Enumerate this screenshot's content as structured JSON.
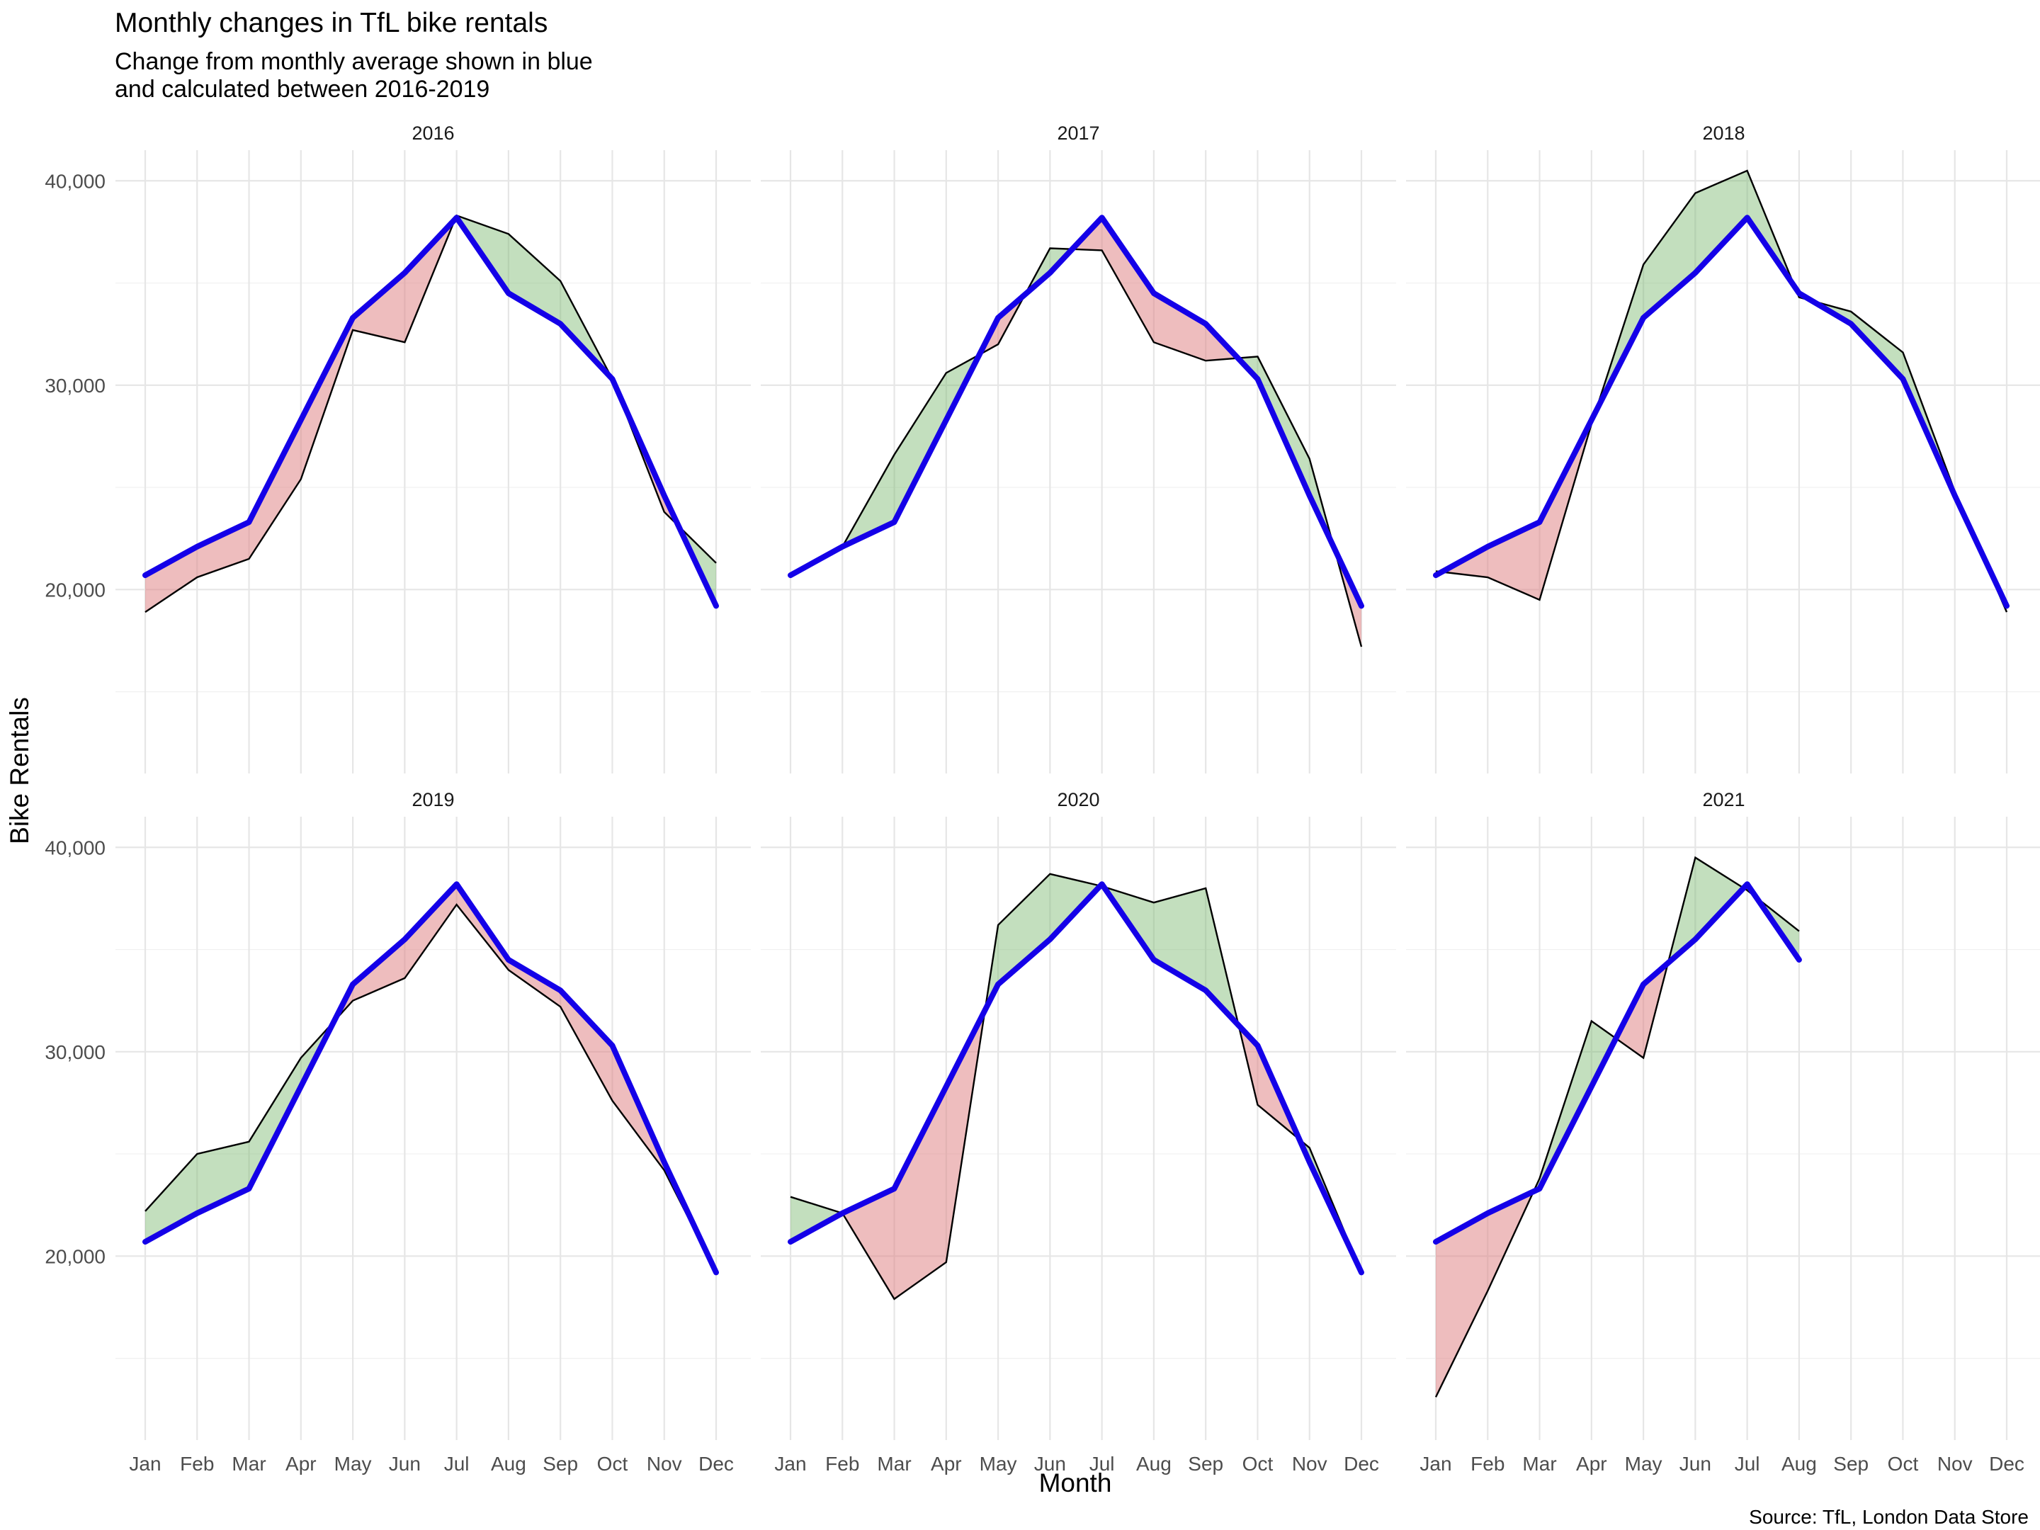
{
  "title": "Monthly changes in TfL bike rentals",
  "subtitle_line1": "Change from monthly average shown in blue",
  "subtitle_line2": "and calculated between 2016-2019",
  "caption": "Source: TfL, London Data Store",
  "colors": {
    "average_line": "#1400e8",
    "above_average_fill": "#79b96f",
    "below_average_fill": "#dd7b7d",
    "actual_line": "#000000",
    "grid": "#e6e6e6"
  },
  "chart_data": {
    "type": "line",
    "facet_by": "year",
    "xlabel": "Month",
    "ylabel": "Bike Rentals",
    "categories": [
      "Jan",
      "Feb",
      "Mar",
      "Apr",
      "May",
      "Jun",
      "Jul",
      "Aug",
      "Sep",
      "Oct",
      "Nov",
      "Dec"
    ],
    "ylim": [
      11000,
      41500
    ],
    "yticks": [
      20000,
      30000,
      40000
    ],
    "ytick_labels": [
      "20,000",
      "30,000",
      "40,000"
    ],
    "grid": true,
    "legend": "none",
    "monthly_average": [
      20700,
      22100,
      23300,
      28300,
      33300,
      35500,
      38200,
      34500,
      33000,
      30300,
      24600,
      19200
    ],
    "facets": [
      {
        "label": "2016",
        "actual": [
          18900,
          20600,
          21500,
          25400,
          32700,
          32100,
          38300,
          37400,
          35100,
          30300,
          23800,
          21300
        ]
      },
      {
        "label": "2017",
        "actual": [
          20700,
          22100,
          26600,
          30600,
          32000,
          36700,
          36600,
          32100,
          31200,
          31400,
          26400,
          17200
        ]
      },
      {
        "label": "2018",
        "actual": [
          20900,
          20600,
          19500,
          28100,
          35900,
          39400,
          40500,
          34300,
          33600,
          31600,
          24800,
          18900
        ]
      },
      {
        "label": "2019",
        "actual": [
          22200,
          25000,
          25600,
          29700,
          32500,
          33600,
          37200,
          34000,
          32200,
          27600,
          24200,
          19200
        ]
      },
      {
        "label": "2020",
        "actual": [
          22900,
          22100,
          17900,
          19700,
          36200,
          38700,
          38100,
          37300,
          38000,
          27400,
          25300,
          19200
        ]
      },
      {
        "label": "2021",
        "actual": [
          13100,
          18300,
          23800,
          31500,
          29700,
          39500,
          37900,
          35900,
          null,
          null,
          null,
          null
        ]
      }
    ]
  }
}
